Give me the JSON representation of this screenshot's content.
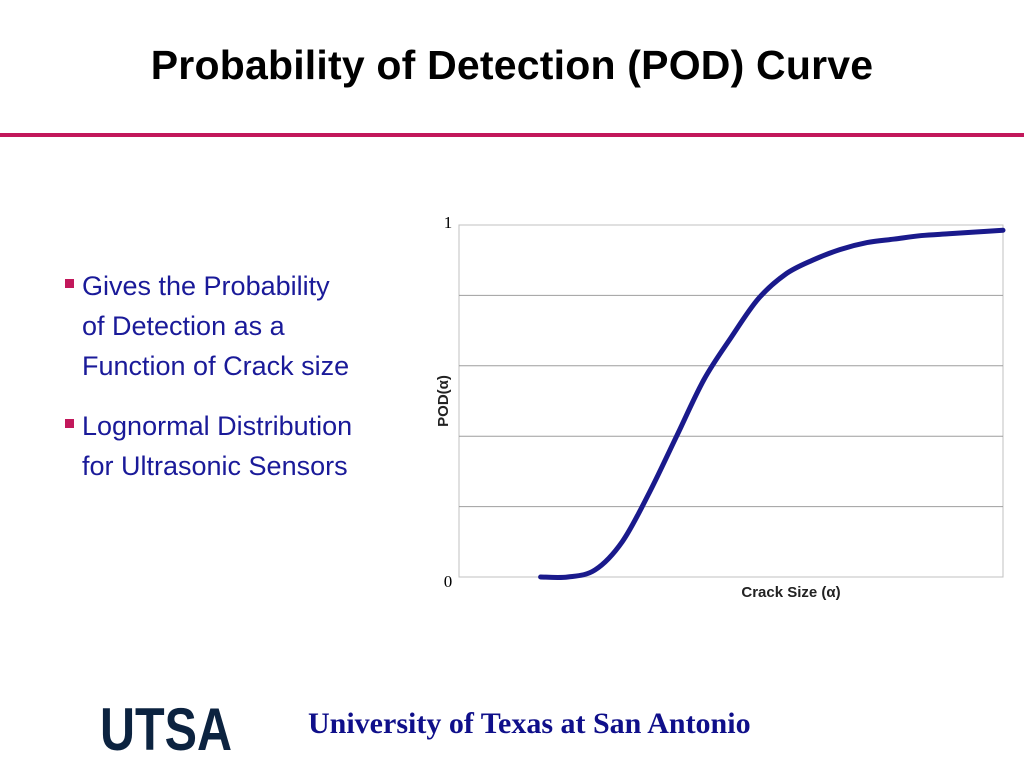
{
  "slide": {
    "title": "Probability of Detection (POD) Curve",
    "accent_color": "#c2185b",
    "text_color": "#1a1a99"
  },
  "bullets": [
    {
      "lines": [
        "Gives the Probability",
        "of Detection as a",
        "Function of Crack size"
      ]
    },
    {
      "lines": [
        "Lognormal Distribution",
        "for Ultrasonic Sensors"
      ]
    }
  ],
  "chart_data": {
    "type": "line",
    "title": "",
    "xlabel": "Crack Size (α)",
    "ylabel": "POD(α)",
    "ylim": [
      0,
      1
    ],
    "y_ticks": [
      0,
      0.2,
      0.4,
      0.6,
      0.8,
      1
    ],
    "y_tick_labels": [
      "0",
      "1"
    ],
    "gridlines": true,
    "xlim": [
      0,
      1
    ],
    "series": [
      {
        "name": "POD",
        "color": "#1a1a8c",
        "x": [
          0.15,
          0.2,
          0.25,
          0.3,
          0.35,
          0.4,
          0.45,
          0.5,
          0.55,
          0.6,
          0.65,
          0.7,
          0.75,
          0.8,
          0.85,
          0.9,
          0.95,
          1.0
        ],
        "y": [
          0.0,
          0.0,
          0.02,
          0.1,
          0.24,
          0.4,
          0.56,
          0.68,
          0.79,
          0.86,
          0.9,
          0.93,
          0.95,
          0.96,
          0.97,
          0.975,
          0.98,
          0.985
        ]
      }
    ]
  },
  "footer": {
    "logo_text": "UTSA",
    "logo_color": "#0c2340",
    "institution": "University of Texas at San Antonio",
    "institution_color": "#0f0f8a"
  }
}
